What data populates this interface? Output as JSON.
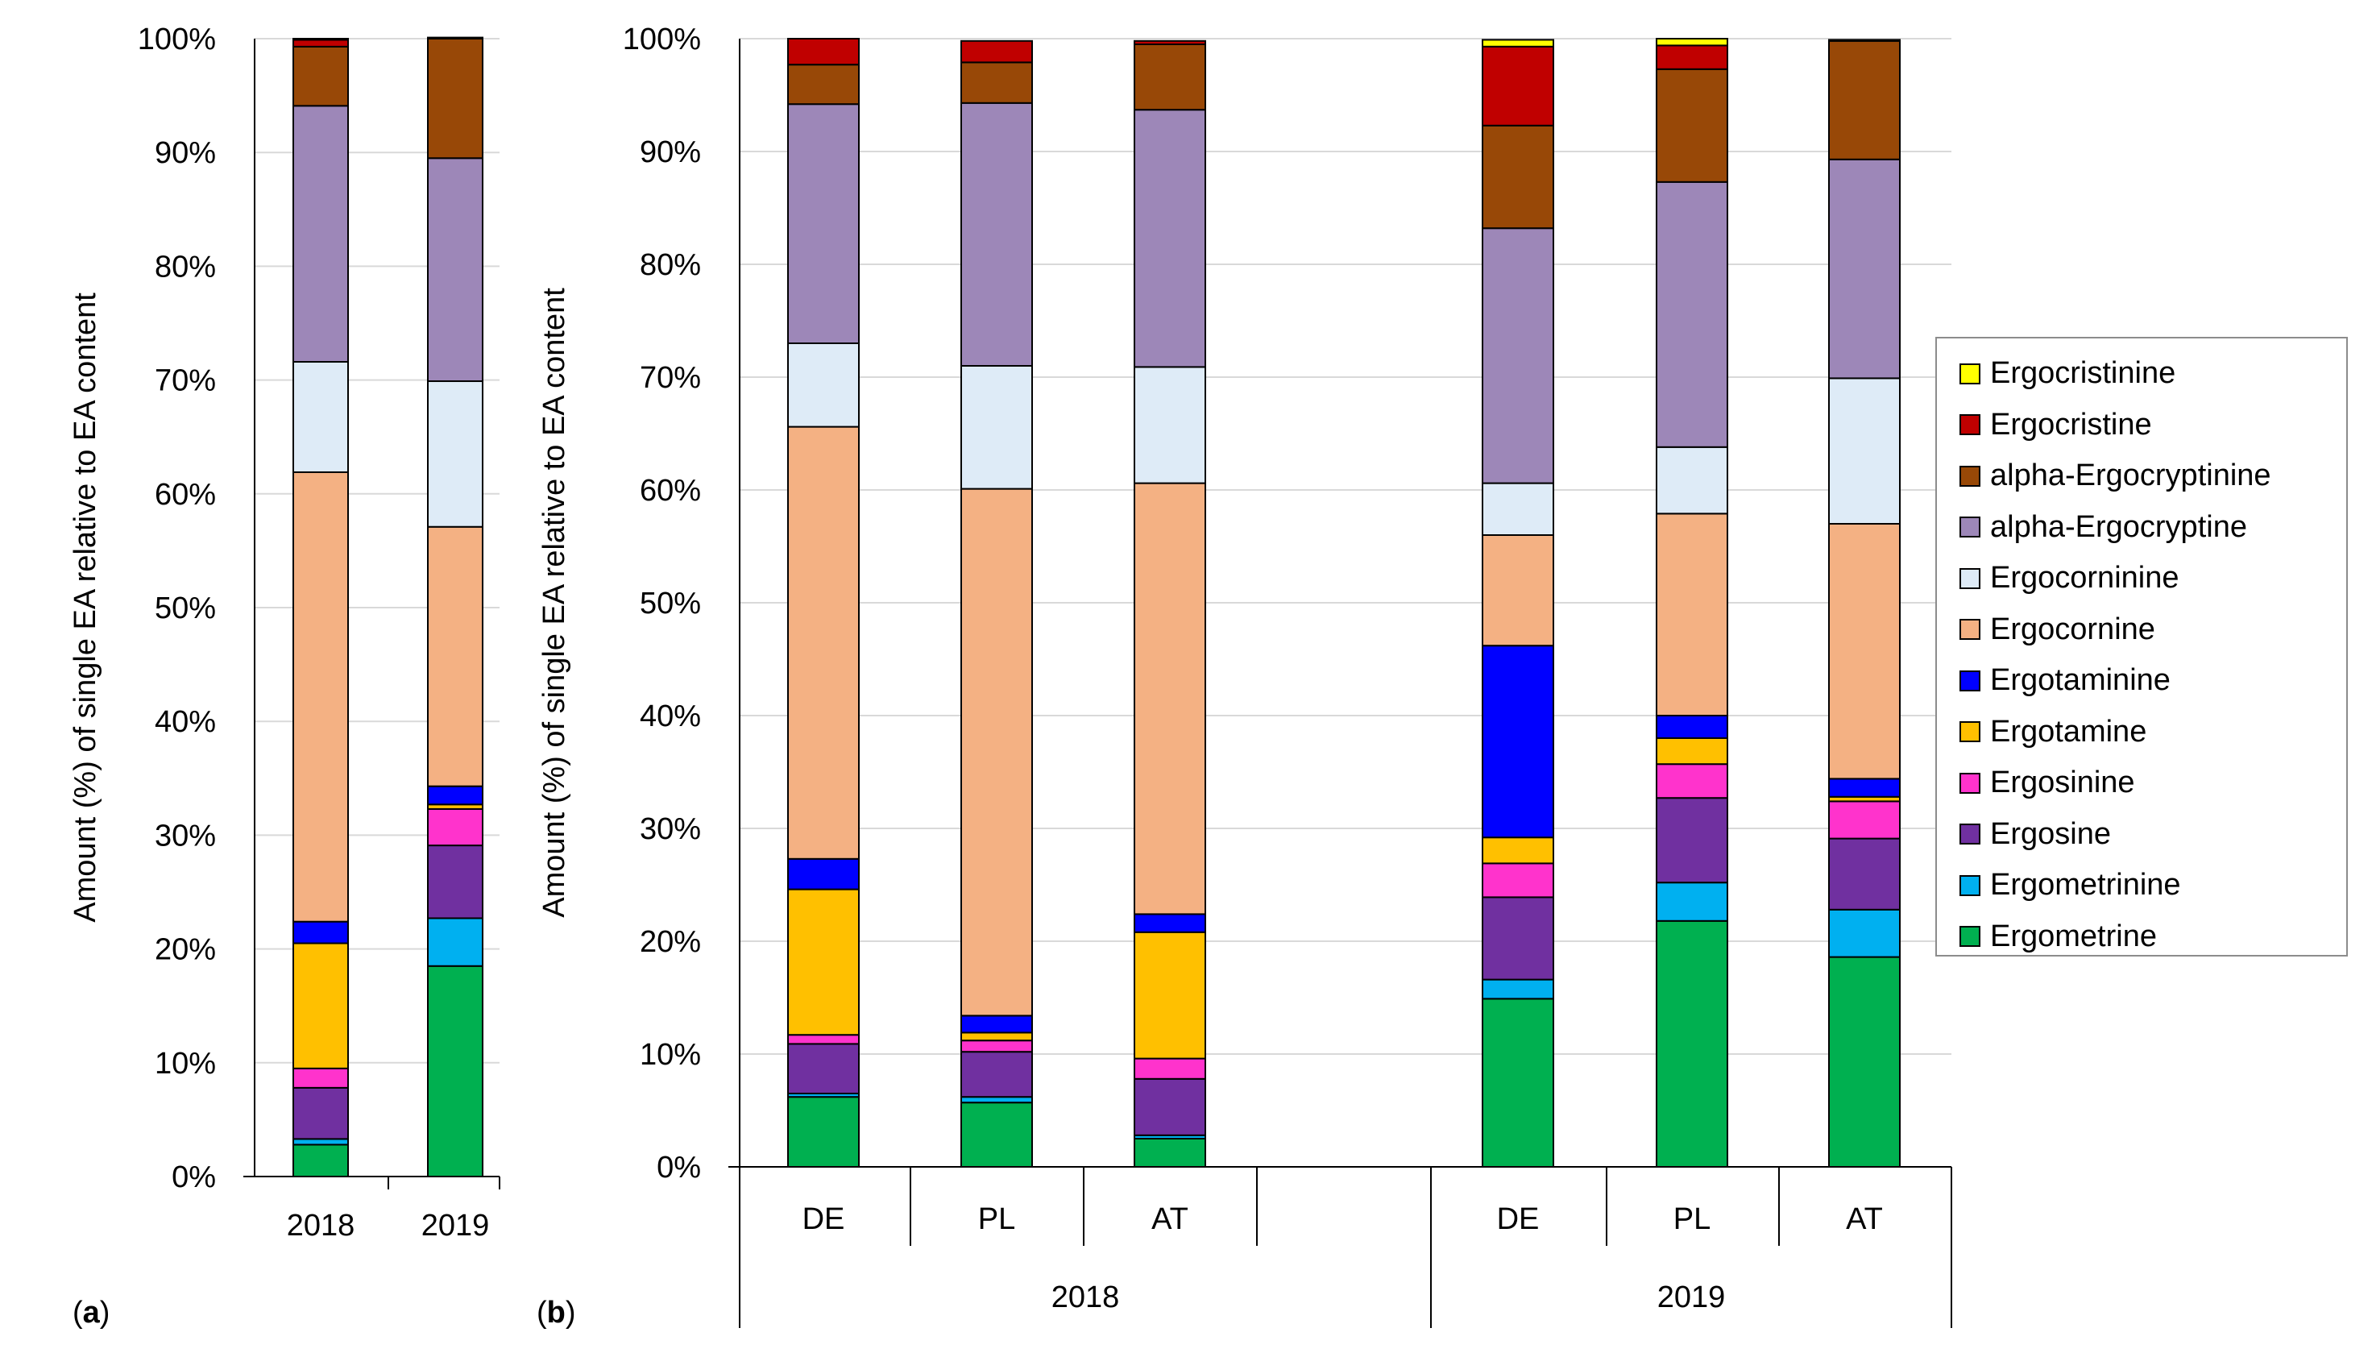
{
  "chart_data": [
    {
      "panel": "(a)",
      "type": "bar",
      "stacked": true,
      "ylabel": "Amount (%) of single EA relative to EA content",
      "ylim": [
        0,
        100
      ],
      "yticks": [
        "0%",
        "10%",
        "20%",
        "30%",
        "40%",
        "50%",
        "60%",
        "70%",
        "80%",
        "90%",
        "100%"
      ],
      "categories": [
        "2018",
        "2019"
      ],
      "series": [
        {
          "name": "Ergometrine",
          "values": [
            2.8,
            18.5
          ]
        },
        {
          "name": "Ergometrinine",
          "values": [
            0.5,
            4.2
          ]
        },
        {
          "name": "Ergosine",
          "values": [
            4.5,
            6.4
          ]
        },
        {
          "name": "Ergosinine",
          "values": [
            1.7,
            3.2
          ]
        },
        {
          "name": "Ergotamine",
          "values": [
            11.0,
            0.4
          ]
        },
        {
          "name": "Ergotaminine",
          "values": [
            1.9,
            1.6
          ]
        },
        {
          "name": "Ergocornine",
          "values": [
            39.5,
            22.8
          ]
        },
        {
          "name": "Ergocorninine",
          "values": [
            9.7,
            12.8
          ]
        },
        {
          "name": "alpha-Ergocryptine",
          "values": [
            22.5,
            19.6
          ]
        },
        {
          "name": "alpha-Ergocryptinine",
          "values": [
            5.2,
            10.5
          ]
        },
        {
          "name": "Ergocristine",
          "values": [
            0.6,
            0.1
          ]
        },
        {
          "name": "Ergocristinine",
          "values": [
            0.1,
            0.0
          ]
        }
      ]
    },
    {
      "panel": "(b)",
      "type": "bar",
      "stacked": true,
      "ylabel": "Amount (%) of single EA relative to EA content",
      "ylim": [
        0,
        100
      ],
      "yticks": [
        "0%",
        "10%",
        "20%",
        "30%",
        "40%",
        "50%",
        "60%",
        "70%",
        "80%",
        "90%",
        "100%"
      ],
      "categories": [
        "DE",
        "PL",
        "AT",
        "",
        "DE",
        "PL",
        "AT"
      ],
      "groups": [
        "2018",
        "2019"
      ],
      "series": [
        {
          "name": "Ergometrine",
          "values": [
            6.2,
            5.7,
            2.5,
            null,
            14.9,
            21.8,
            18.6
          ]
        },
        {
          "name": "Ergometrinine",
          "values": [
            0.3,
            0.5,
            0.3,
            null,
            1.7,
            3.4,
            4.2
          ]
        },
        {
          "name": "Ergosine",
          "values": [
            4.4,
            4.0,
            5.0,
            null,
            7.3,
            7.5,
            6.3
          ]
        },
        {
          "name": "Ergosinine",
          "values": [
            0.8,
            1.0,
            1.8,
            null,
            3.0,
            3.0,
            3.3
          ]
        },
        {
          "name": "Ergotamine",
          "values": [
            12.9,
            0.7,
            11.2,
            null,
            2.3,
            2.3,
            0.4
          ]
        },
        {
          "name": "Ergotaminine",
          "values": [
            2.7,
            1.5,
            1.6,
            null,
            17.0,
            2.0,
            1.6
          ]
        },
        {
          "name": "Ergocornine",
          "values": [
            38.3,
            46.7,
            38.2,
            null,
            9.8,
            17.9,
            22.6
          ]
        },
        {
          "name": "Ergocorninine",
          "values": [
            7.4,
            10.9,
            10.3,
            null,
            4.6,
            5.9,
            12.9
          ]
        },
        {
          "name": "alpha-Ergocryptine",
          "values": [
            21.2,
            23.3,
            22.8,
            null,
            22.6,
            23.5,
            19.4
          ]
        },
        {
          "name": "alpha-Ergocryptinine",
          "values": [
            3.5,
            3.6,
            5.8,
            null,
            9.1,
            10.0,
            10.5
          ]
        },
        {
          "name": "Ergocristine",
          "values": [
            2.3,
            1.9,
            0.3,
            null,
            7.0,
            2.1,
            0.1
          ]
        },
        {
          "name": "Ergocristinine",
          "values": [
            0.0,
            0.0,
            0.0,
            null,
            0.6,
            0.6,
            0.0
          ]
        }
      ]
    }
  ],
  "colors": {
    "Ergometrine": "#00b050",
    "Ergometrinine": "#00b0f0",
    "Ergosine": "#7030a0",
    "Ergosinine": "#ff33cc",
    "Ergotamine": "#ffc000",
    "Ergotaminine": "#0000ff",
    "Ergocornine": "#f4b183",
    "Ergocorninine": "#deebf7",
    "alpha-Ergocryptine": "#9d87b8",
    "alpha-Ergocryptinine": "#984807",
    "Ergocristine": "#c00000",
    "Ergocristinine": "#ffff00"
  },
  "legend": [
    "Ergocristinine",
    "Ergocristine",
    "alpha-Ergocryptinine",
    "alpha-Ergocryptine",
    "Ergocorninine",
    "Ergocornine",
    "Ergotaminine",
    "Ergotamine",
    "Ergosinine",
    "Ergosine",
    "Ergometrinine",
    "Ergometrine"
  ],
  "panel_labels": {
    "a": "a",
    "b": "b"
  }
}
